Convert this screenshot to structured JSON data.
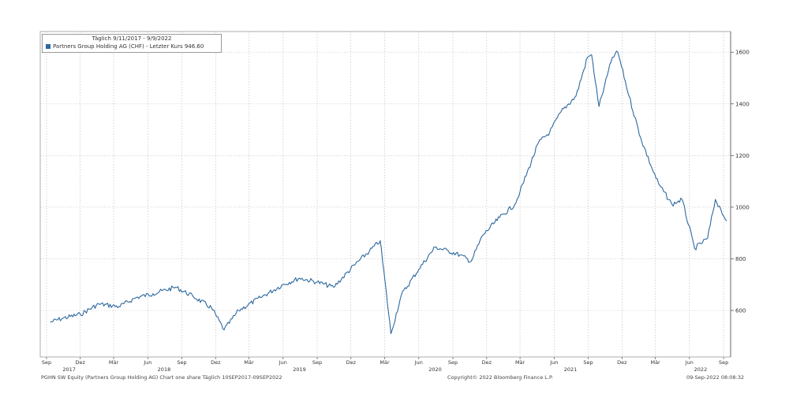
{
  "legend": {
    "period": "Täglich 9/11/2017 - 9/9/2022",
    "entry": "Partners Group Holding AG (CHF) - Letzter Kurs 946.60",
    "color": "#2e68a0"
  },
  "footer": {
    "left": "PGHN SW Equity (Partners Group Holding AG) Chart one share  Täglich 10SEP2017-09SEP2022",
    "center": "Copyright© 2022 Bloomberg Finance L.P.",
    "right": "09-Sep-2022 08:08:32"
  },
  "chart_data": {
    "type": "line",
    "title": "",
    "xlabel": "",
    "ylabel": "",
    "ylim": [
      420,
      1680
    ],
    "yticks": [
      600,
      800,
      1000,
      1200,
      1400,
      1600
    ],
    "y_axis_side": "right",
    "grid": "vertical dotted at months, solid at year starts",
    "x_tick_labels": [
      "Sep",
      "Dez",
      "Mär",
      "Jun",
      "Sep",
      "Dez",
      "Mär",
      "Jun",
      "Sep",
      "Dez",
      "Mär",
      "Jun",
      "Sep",
      "Dez",
      "Mär",
      "Jun",
      "Sep",
      "Dez",
      "Mär",
      "Jun",
      "Sep"
    ],
    "year_labels": [
      "2017",
      "2018",
      "2019",
      "2020",
      "2021",
      "2022"
    ],
    "series": [
      {
        "name": "Partners Group Holding AG (CHF)",
        "color": "#2e68a0",
        "x": [
          "2017-09-11",
          "2017-10-15",
          "2017-12-01",
          "2018-01-20",
          "2018-03-15",
          "2018-05-01",
          "2018-06-15",
          "2018-08-15",
          "2018-10-01",
          "2018-11-20",
          "2018-12-24",
          "2019-02-01",
          "2019-04-01",
          "2019-06-01",
          "2019-07-15",
          "2019-09-01",
          "2019-10-15",
          "2019-12-10",
          "2020-01-20",
          "2020-02-18",
          "2020-03-18",
          "2020-04-15",
          "2020-06-01",
          "2020-07-15",
          "2020-08-20",
          "2020-09-20",
          "2020-10-20",
          "2020-11-20",
          "2021-01-05",
          "2021-02-15",
          "2021-03-01",
          "2021-04-20",
          "2021-05-20",
          "2021-06-20",
          "2021-07-30",
          "2021-08-30",
          "2021-09-10",
          "2021-09-30",
          "2021-10-15",
          "2021-11-05",
          "2021-11-20",
          "2021-12-20",
          "2022-01-20",
          "2022-02-20",
          "2022-03-10",
          "2022-04-15",
          "2022-05-12",
          "2022-06-15",
          "2022-07-20",
          "2022-08-10",
          "2022-08-25",
          "2022-09-09"
        ],
        "values": [
          555,
          570,
          585,
          625,
          615,
          650,
          665,
          690,
          655,
          610,
          525,
          600,
          650,
          700,
          725,
          710,
          690,
          775,
          830,
          870,
          510,
          660,
          760,
          845,
          830,
          815,
          790,
          890,
          960,
          1010,
          1060,
          1250,
          1290,
          1370,
          1430,
          1580,
          1590,
          1390,
          1470,
          1580,
          1600,
          1430,
          1270,
          1150,
          1090,
          1010,
          1030,
          840,
          880,
          1030,
          990,
          946.6
        ]
      }
    ]
  }
}
